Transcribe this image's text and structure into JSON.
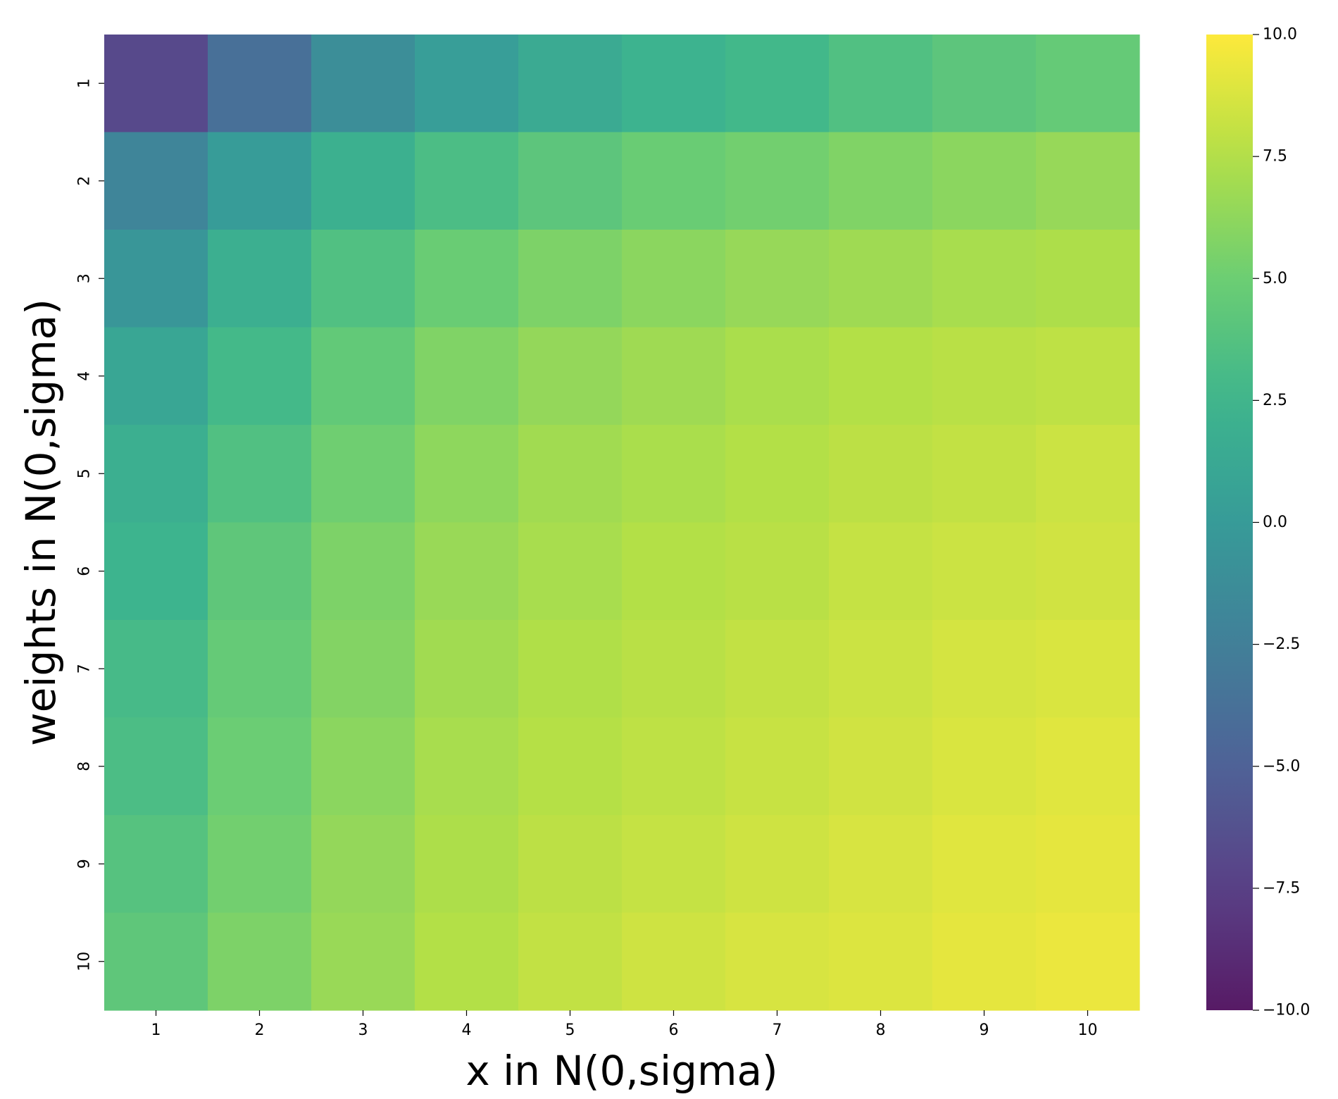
{
  "chart_data": {
    "type": "heatmap",
    "title": "",
    "xlabel": "x in N(0,sigma)",
    "ylabel": "weights in N(0,sigma)",
    "x_categories": [
      "1",
      "2",
      "3",
      "4",
      "5",
      "6",
      "7",
      "8",
      "9",
      "10"
    ],
    "y_categories": [
      "1",
      "2",
      "3",
      "4",
      "5",
      "6",
      "7",
      "8",
      "9",
      "10"
    ],
    "values": [
      [
        -6.9,
        -3.8,
        -1.2,
        0.3,
        1.5,
        2.3,
        2.8,
        3.6,
        4.2,
        4.6
      ],
      [
        -2.0,
        0.1,
        2.0,
        3.3,
        4.2,
        4.8,
        5.2,
        5.7,
        6.1,
        6.5
      ],
      [
        -0.5,
        1.9,
        3.6,
        4.8,
        5.6,
        6.1,
        6.5,
        6.8,
        7.1,
        7.3
      ],
      [
        1.0,
        2.9,
        4.5,
        5.7,
        6.4,
        6.8,
        7.2,
        7.5,
        7.7,
        7.9
      ],
      [
        1.9,
        3.6,
        5.1,
        6.2,
        6.9,
        7.2,
        7.5,
        7.8,
        8.0,
        8.3
      ],
      [
        2.4,
        4.3,
        5.6,
        6.6,
        7.1,
        7.5,
        7.7,
        8.1,
        8.3,
        8.5
      ],
      [
        3.0,
        4.6,
        5.8,
        6.9,
        7.4,
        7.7,
        8.0,
        8.3,
        8.6,
        8.8
      ],
      [
        3.3,
        4.9,
        6.1,
        7.1,
        7.6,
        7.9,
        8.2,
        8.5,
        8.8,
        9.0
      ],
      [
        3.8,
        5.2,
        6.4,
        7.3,
        7.8,
        8.1,
        8.4,
        8.7,
        9.0,
        9.2
      ],
      [
        4.3,
        5.6,
        6.6,
        7.5,
        8.0,
        8.4,
        8.7,
        8.9,
        9.2,
        9.4
      ]
    ],
    "colormap": "viridis",
    "vmin": -10.0,
    "vmax": 10.0,
    "colorbar_ticks": [
      "10.0",
      "7.5",
      "5.0",
      "2.5",
      "0.0",
      "−2.5",
      "−5.0",
      "−7.5",
      "−10.0"
    ],
    "colorbar_tick_values": [
      10.0,
      7.5,
      5.0,
      2.5,
      0.0,
      -2.5,
      -5.0,
      -7.5,
      -10.0
    ],
    "grid": false,
    "legend": "colorbar-right"
  }
}
